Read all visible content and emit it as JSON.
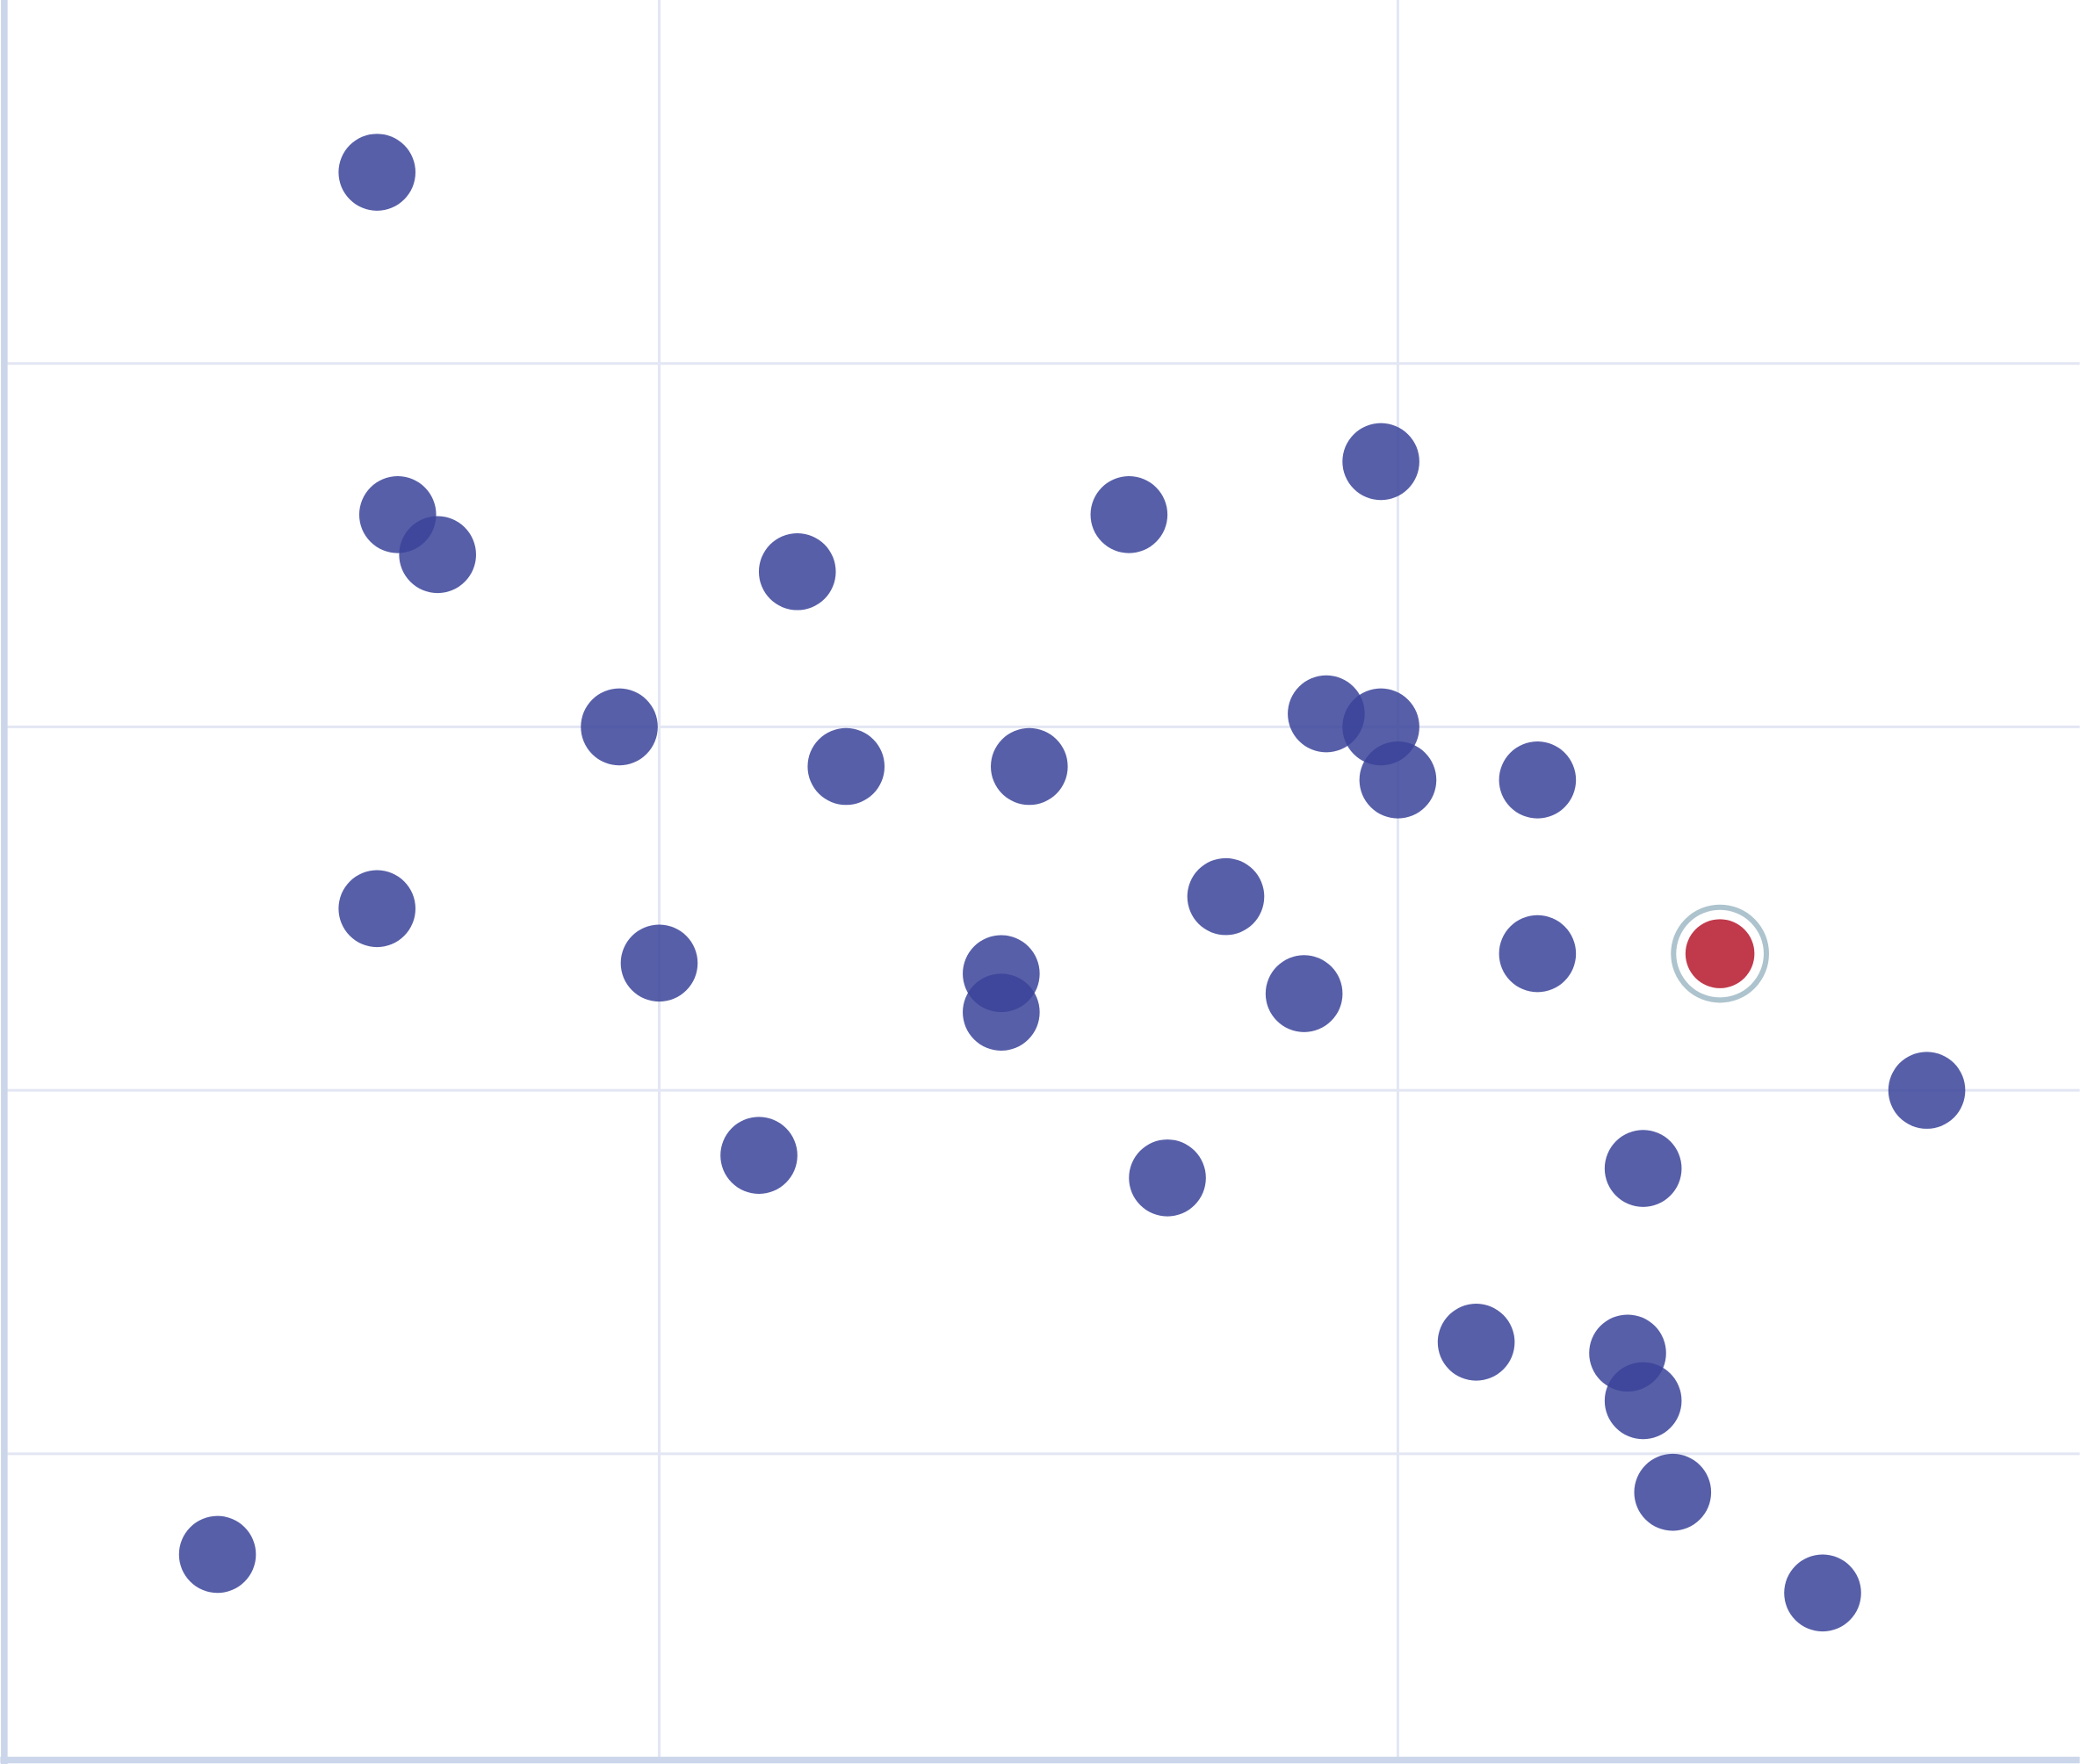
{
  "chart_data": {
    "type": "scatter",
    "title": "",
    "xlabel": "",
    "ylabel": "",
    "xlim": [
      0.117,
      2.923
    ],
    "ylim": [
      0.161,
      5.0
    ],
    "x_gridlines": [
      1,
      2
    ],
    "y_gridlines": [
      1,
      2,
      3,
      4
    ],
    "grid": true,
    "legend": "none",
    "colors": {
      "point": "#3a4399",
      "highlight": "#c03a4c",
      "highlight_ring": "#adc3cd",
      "grid": "#e3e6f3",
      "axis": "#cbd6ea"
    },
    "points": [
      {
        "x": 0.618,
        "y": 4.526
      },
      {
        "x": 0.646,
        "y": 3.584
      },
      {
        "x": 0.7,
        "y": 3.474
      },
      {
        "x": 1.187,
        "y": 3.427
      },
      {
        "x": 1.636,
        "y": 3.584
      },
      {
        "x": 1.977,
        "y": 3.73
      },
      {
        "x": 0.946,
        "y": 3.0
      },
      {
        "x": 1.253,
        "y": 2.891
      },
      {
        "x": 1.501,
        "y": 2.891
      },
      {
        "x": 1.903,
        "y": 3.036
      },
      {
        "x": 1.977,
        "y": 3.0
      },
      {
        "x": 2.0,
        "y": 2.854
      },
      {
        "x": 2.189,
        "y": 2.854
      },
      {
        "x": 0.618,
        "y": 2.5
      },
      {
        "x": 1.0,
        "y": 2.35
      },
      {
        "x": 1.463,
        "y": 2.321
      },
      {
        "x": 1.463,
        "y": 2.215
      },
      {
        "x": 1.767,
        "y": 2.533
      },
      {
        "x": 1.873,
        "y": 2.266
      },
      {
        "x": 2.189,
        "y": 2.376
      },
      {
        "x": 2.716,
        "y": 2.0
      },
      {
        "x": 2.332,
        "y": 1.785
      },
      {
        "x": 1.135,
        "y": 1.821
      },
      {
        "x": 1.688,
        "y": 1.759
      },
      {
        "x": 2.106,
        "y": 1.307
      },
      {
        "x": 2.311,
        "y": 1.277
      },
      {
        "x": 2.332,
        "y": 1.146
      },
      {
        "x": 2.372,
        "y": 0.894
      },
      {
        "x": 0.402,
        "y": 0.723
      },
      {
        "x": 2.575,
        "y": 0.617
      }
    ],
    "highlighted_point": {
      "x": 2.436,
      "y": 2.376
    }
  }
}
